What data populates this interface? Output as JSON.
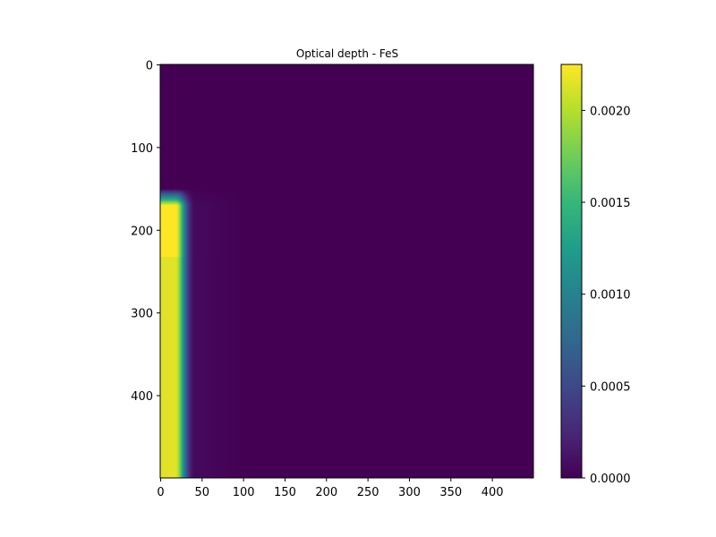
{
  "chart_data": {
    "type": "heatmap",
    "title": "Optical depth - FeS",
    "xlabel": "",
    "ylabel": "",
    "xlim": [
      -0.5,
      449.5
    ],
    "ylim": [
      499.5,
      -0.5
    ],
    "x_ticks": [
      0,
      50,
      100,
      150,
      200,
      250,
      300,
      350,
      400
    ],
    "y_ticks": [
      0,
      100,
      200,
      300,
      400
    ],
    "colormap": "viridis",
    "colorbar": {
      "vmin": 0.0,
      "vmax": 0.00225,
      "ticks": [
        "0.0000",
        "0.0005",
        "0.0010",
        "0.0015",
        "0.0020"
      ],
      "tick_values": [
        0.0,
        0.0005,
        0.001,
        0.0015,
        0.002
      ]
    },
    "field": {
      "background": 0.0,
      "onset_row": 150,
      "rise_rows": 20,
      "bright_band_rows": [
        165,
        232
      ],
      "peak_value": 0.00215,
      "band_peak_value": 0.00225,
      "plateau_until_col": 18,
      "falloff_width_cols": 14,
      "tail_until_col": 100
    }
  },
  "colors": {
    "viridis_stops": [
      "#440154",
      "#482878",
      "#3e4989",
      "#31688e",
      "#26828e",
      "#1f9e89",
      "#35b779",
      "#6ece58",
      "#b5de2b",
      "#fde725"
    ]
  }
}
